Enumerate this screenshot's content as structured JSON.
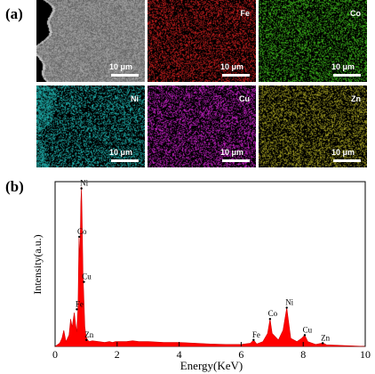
{
  "panel_a": {
    "label": "(a)",
    "tiles": [
      {
        "element": "",
        "color": "#9c9c9c",
        "scale": "10 μm"
      },
      {
        "element": "Fe",
        "color": "#d21f1f",
        "scale": "10 μm"
      },
      {
        "element": "Co",
        "color": "#3fc01c",
        "scale": "10 μm"
      },
      {
        "element": "Ni",
        "color": "#1fb8b4",
        "scale": "10 μm"
      },
      {
        "element": "Cu",
        "color": "#d022d0",
        "scale": "10 μm"
      },
      {
        "element": "Zn",
        "color": "#a8a422",
        "scale": "10 μm"
      }
    ]
  },
  "panel_b": {
    "label": "(b)",
    "chart_data": {
      "type": "area",
      "xlabel": "Energy(KeV)",
      "ylabel": "Intensity(a.u.)",
      "xlim": [
        0,
        10
      ],
      "x_ticks": [
        "0",
        "2",
        "4",
        "6",
        "8",
        "10"
      ],
      "fill_color": "#ff0000",
      "annotations": [
        {
          "text": "Ni",
          "x": 0.85,
          "y": 0.98
        },
        {
          "text": "Co",
          "x": 0.78,
          "y": 0.68
        },
        {
          "text": "Cu",
          "x": 0.93,
          "y": 0.4
        },
        {
          "text": "Fe",
          "x": 0.7,
          "y": 0.23
        },
        {
          "text": "Zn",
          "x": 1.01,
          "y": 0.04
        },
        {
          "text": "Fe",
          "x": 6.4,
          "y": 0.04
        },
        {
          "text": "Co",
          "x": 6.93,
          "y": 0.17
        },
        {
          "text": "Ni",
          "x": 7.47,
          "y": 0.24
        },
        {
          "text": "Cu",
          "x": 8.05,
          "y": 0.07
        },
        {
          "text": "Zn",
          "x": 8.63,
          "y": 0.02
        }
      ],
      "x": [
        0.0,
        0.15,
        0.22,
        0.28,
        0.35,
        0.45,
        0.5,
        0.55,
        0.62,
        0.66,
        0.7,
        0.74,
        0.77,
        0.8,
        0.83,
        0.85,
        0.87,
        0.9,
        0.93,
        0.96,
        1.0,
        1.05,
        1.1,
        1.2,
        1.4,
        1.6,
        1.75,
        1.85,
        1.95,
        2.1,
        2.3,
        2.5,
        2.7,
        3.0,
        3.5,
        4.0,
        4.5,
        5.0,
        5.5,
        6.0,
        6.3,
        6.4,
        6.5,
        6.7,
        6.85,
        6.93,
        7.0,
        7.2,
        7.35,
        7.47,
        7.6,
        7.8,
        7.95,
        8.05,
        8.15,
        8.4,
        8.6,
        8.65,
        8.75,
        9.0,
        9.5,
        10.0
      ],
      "y": [
        0.0,
        0.02,
        0.05,
        0.1,
        0.03,
        0.07,
        0.17,
        0.12,
        0.21,
        0.14,
        0.09,
        0.25,
        0.68,
        0.55,
        0.9,
        0.99,
        0.8,
        0.45,
        0.28,
        0.12,
        0.06,
        0.04,
        0.03,
        0.035,
        0.03,
        0.025,
        0.03,
        0.025,
        0.03,
        0.03,
        0.03,
        0.035,
        0.03,
        0.03,
        0.025,
        0.025,
        0.02,
        0.015,
        0.012,
        0.012,
        0.02,
        0.04,
        0.015,
        0.03,
        0.08,
        0.17,
        0.08,
        0.04,
        0.1,
        0.24,
        0.05,
        0.03,
        0.05,
        0.07,
        0.03,
        0.012,
        0.02,
        0.02,
        0.01,
        0.008,
        0.004,
        0.0
      ]
    }
  }
}
